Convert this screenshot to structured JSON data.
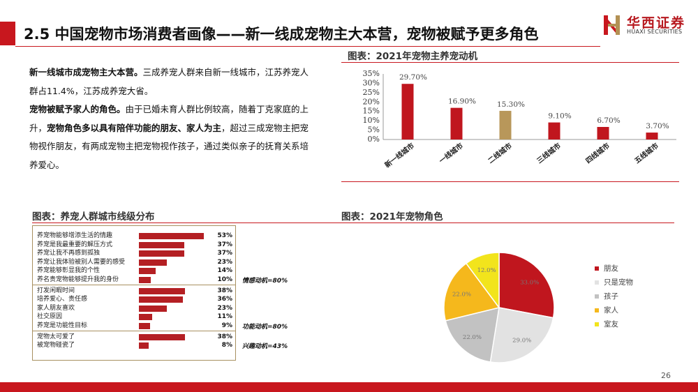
{
  "header": {
    "title": "2.5 中国宠物市场消费者画像——新一线成宠物主大本营，宠物被赋予更多角色",
    "logo_cn": "华西证券",
    "logo_en": "HUAXI SECURITIES",
    "brand_color": "#c8171e"
  },
  "body": {
    "p1_bold": "新一线城市成宠物主大本营。",
    "p1_text": "三成养宠人群来自新一线城市，江苏养宠人群占11.4%，江苏成养宠大省。",
    "p2_bold": "宠物被赋予家人的角色。",
    "p2_text_a": "由于已婚未育人群比例较高，随着丁克家庭的上升，",
    "p2_bold_b": "宠物角色多以具有陪伴功能的朋友、家人为主",
    "p2_text_c": "，超过三成宠物主把宠物视作朋友，有两成宠物主把宠物视作孩子，通过类似亲子的抚育关系培养爱心。"
  },
  "chart_titles": {
    "bar": "图表：2021年宠物主养宠动机",
    "table": "图表：养宠人群城市线级分布",
    "pie": "图表：2021年宠物角色"
  },
  "chart_data": [
    {
      "type": "bar",
      "title": "图表：2021年宠物主养宠动机",
      "categories": [
        "新一线城市",
        "一线城市",
        "二线城市",
        "三线城市",
        "四线城市",
        "五线城市"
      ],
      "values": [
        29.7,
        16.9,
        15.3,
        9.1,
        6.7,
        3.7
      ],
      "value_labels": [
        "29.70%",
        "16.90%",
        "15.30%",
        "9.10%",
        "6.70%",
        "3.70%"
      ],
      "colors": [
        "#c0161e",
        "#c0161e",
        "#b8975a",
        "#c0161e",
        "#c0161e",
        "#c0161e"
      ],
      "yticks": [
        "0%",
        "5%",
        "10%",
        "15%",
        "20%",
        "25%",
        "30%",
        "35%"
      ],
      "ylim": [
        0,
        35
      ],
      "grid": false
    },
    {
      "type": "bar",
      "orientation": "horizontal",
      "title": "图表：养宠人群城市线级分布",
      "categories": [
        "养宠物能够增添生活的情趣",
        "养宠是我最重要的解压方式",
        "养宠让我不再感到孤独",
        "养宠让我体验被别人需要的感受",
        "养宠能够彰显我的个性",
        "养名贵宠物能够提升我的身份",
        "打发闲暇时间",
        "培养爱心、责任感",
        "家人朋友喜欢",
        "社交原因",
        "养宠是功能性目标",
        "宠物太可爱了",
        "被宠物碰瓷了"
      ],
      "values": [
        53,
        37,
        37,
        23,
        14,
        10,
        38,
        36,
        23,
        11,
        9,
        38,
        8
      ],
      "value_labels": [
        "53%",
        "37%",
        "37%",
        "23%",
        "14%",
        "10%",
        "38%",
        "36%",
        "23%",
        "11%",
        "9%",
        "38%",
        "8%"
      ],
      "groups": [
        {
          "label": "情感动机=80%",
          "rows": [
            0,
            5
          ]
        },
        {
          "label": "功能动机=80%",
          "rows": [
            6,
            10
          ]
        },
        {
          "label": "兴趣动机=43%",
          "rows": [
            11,
            12
          ]
        }
      ],
      "xlim": [
        0,
        55
      ]
    },
    {
      "type": "pie",
      "title": "图表：2021年宠物角色",
      "labels": [
        "朋友",
        "只是宠物",
        "孩子",
        "家人",
        "室友"
      ],
      "values": [
        33.0,
        29.0,
        22.0,
        22.0,
        12.0
      ],
      "value_labels": [
        "33.0%",
        "29.0%",
        "22.0%",
        "22.0%",
        "12.0%"
      ],
      "colors": [
        "#c0161e",
        "#e2e2e2",
        "#c2c2c2",
        "#f5b81c",
        "#f2e41c"
      ],
      "legend_position": "right"
    }
  ],
  "footer": {
    "page_number": "26"
  }
}
